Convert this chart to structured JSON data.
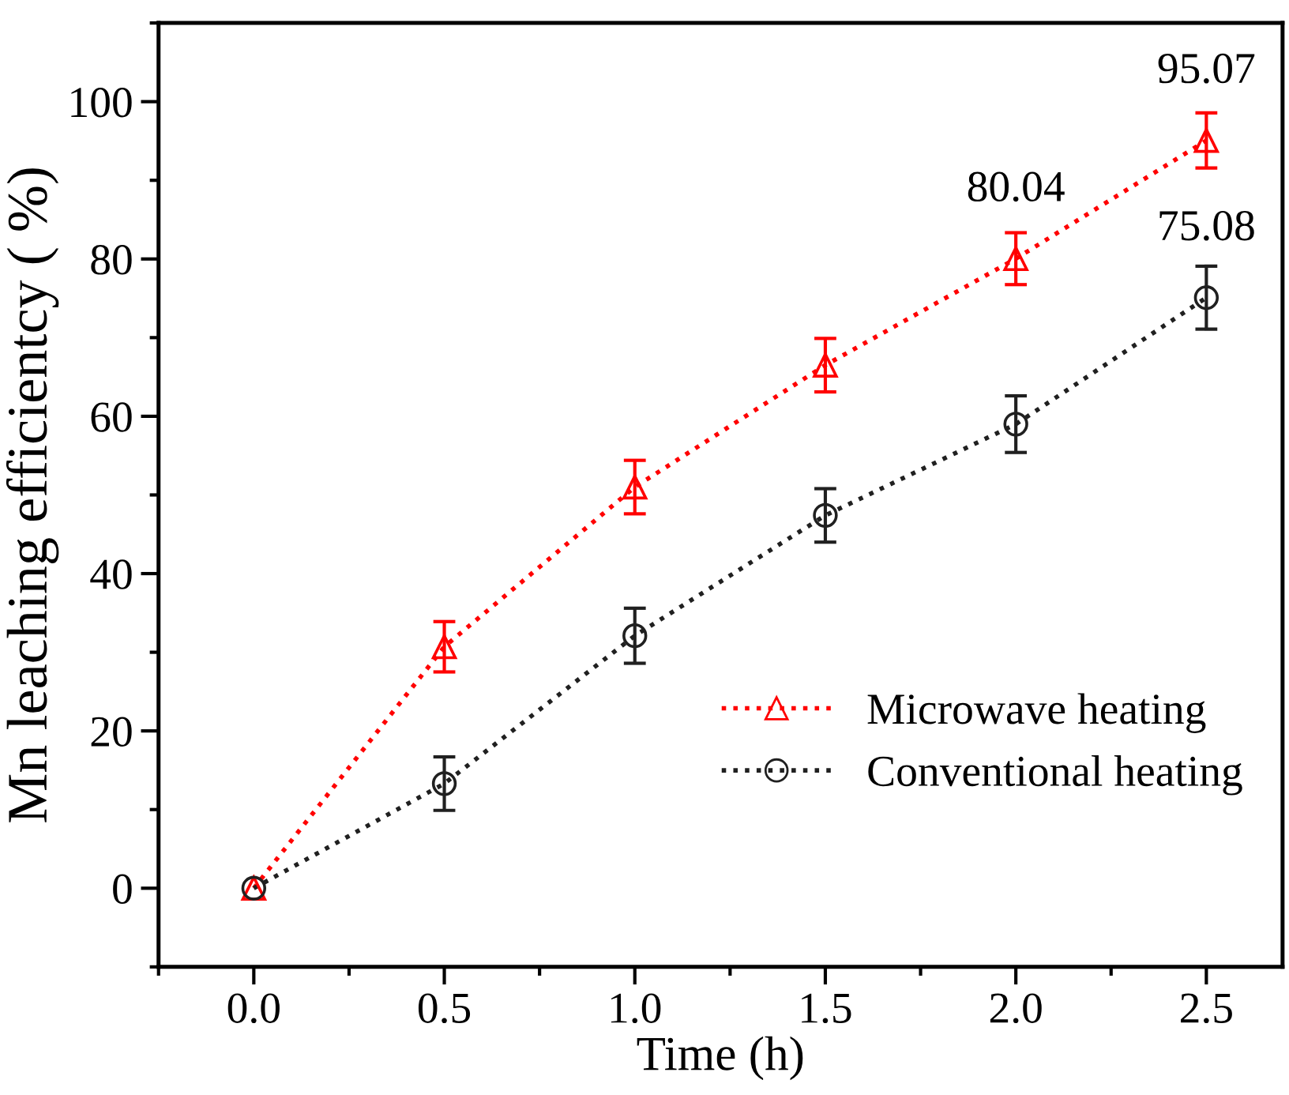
{
  "chart_data": {
    "type": "line",
    "xlabel": "Time (h)",
    "ylabel": "Mn leaching efficientcy ( %)",
    "x": [
      0.0,
      0.5,
      1.0,
      1.5,
      2.0,
      2.5
    ],
    "series": [
      {
        "name": "Microwave heating",
        "color": "#ff0000",
        "marker": "triangle",
        "line_style": "dotted",
        "values": [
          0,
          30.7,
          51.0,
          66.5,
          80.04,
          95.07
        ],
        "value_labels": [
          null,
          null,
          null,
          null,
          "80.04",
          "95.07"
        ],
        "errors": [
          null,
          3.2,
          3.4,
          3.4,
          3.3,
          3.5
        ]
      },
      {
        "name": "Conventional heating",
        "color": "#202020",
        "marker": "circle",
        "line_style": "dotted",
        "values": [
          0,
          13.3,
          32.1,
          47.4,
          59.0,
          75.08
        ],
        "value_labels": [
          null,
          null,
          null,
          null,
          null,
          "75.08"
        ],
        "errors": [
          null,
          3.4,
          3.5,
          3.4,
          3.6,
          4.0
        ]
      }
    ],
    "xlim": [
      -0.25,
      2.7
    ],
    "ylim": [
      -10,
      110
    ],
    "xticks": [
      {
        "value": 0.0,
        "label": "0.0"
      },
      {
        "value": 0.5,
        "label": "0.5"
      },
      {
        "value": 1.0,
        "label": "1.0"
      },
      {
        "value": 1.5,
        "label": "1.5"
      },
      {
        "value": 2.0,
        "label": "2.0"
      },
      {
        "value": 2.5,
        "label": "2.5"
      }
    ],
    "yticks": [
      0,
      20,
      40,
      60,
      80,
      100
    ],
    "grid": false,
    "legend": "bottom right"
  }
}
